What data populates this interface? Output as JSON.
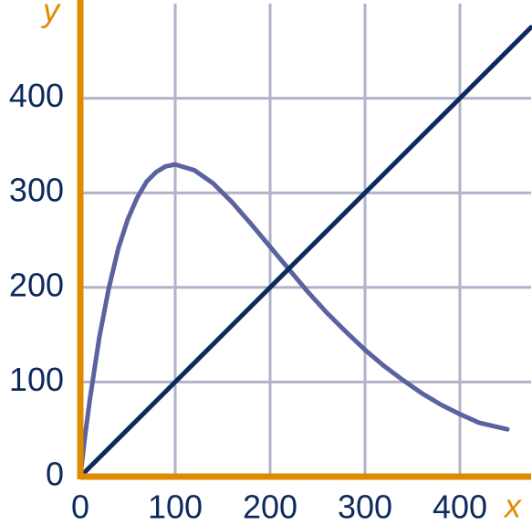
{
  "chart_data": {
    "type": "line",
    "xlabel": "x",
    "ylabel": "y",
    "x": [
      0,
      5,
      10,
      20,
      30,
      40,
      50,
      60,
      70,
      80,
      90,
      100,
      120,
      140,
      160,
      180,
      200,
      220,
      240,
      260,
      280,
      300,
      320,
      340,
      360,
      380,
      400,
      420,
      450,
      475
    ],
    "series": [
      {
        "color": "#0e2a5c",
        "values": [
          0,
          5,
          10,
          20,
          30,
          40,
          50,
          60,
          70,
          80,
          90,
          100,
          120,
          140,
          160,
          180,
          200,
          220,
          240,
          260,
          280,
          300,
          320,
          340,
          360,
          380,
          400,
          420,
          450,
          475
        ]
      },
      {
        "color": "#5a62a0",
        "values": [
          0,
          43,
          81,
          147,
          199,
          241,
          272,
          295,
          312,
          322,
          328,
          330,
          324,
          310,
          290,
          267,
          243,
          219,
          195,
          173,
          153,
          134,
          117,
          102,
          88,
          76,
          66,
          57,
          50,
          null
        ]
      }
    ],
    "xlim": [
      0,
      475
    ],
    "ylim": [
      0,
      500
    ],
    "xticks": [
      0,
      100,
      200,
      300,
      400
    ],
    "yticks": [
      0,
      100,
      200,
      300,
      400
    ],
    "grid": true,
    "grid_color": "#b2b2c8",
    "axis_color": "#e08a00",
    "tick_color": "#0e2a5c"
  }
}
